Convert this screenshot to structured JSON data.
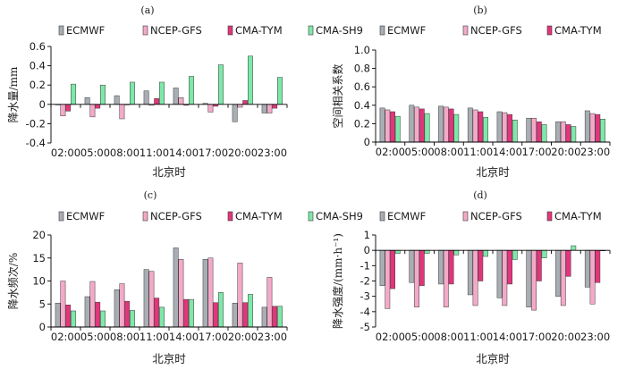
{
  "figure": {
    "legend_items": [
      {
        "name": "ECMWF",
        "color": "#a9aeb4"
      },
      {
        "name": "NCEP-GFS",
        "color": "#f4a9c8"
      },
      {
        "name": "CMA-TYM",
        "color": "#e2357b"
      },
      {
        "name": "CMA-SH9",
        "color": "#7ee8a8"
      }
    ],
    "bar_stroke": "#3a3a3a"
  },
  "chart_data": [
    {
      "panel": "(a)",
      "type": "bar",
      "categories": [
        "02:00",
        "05:00",
        "08:00",
        "11:00",
        "14:00",
        "17:00",
        "20:00",
        "23:00"
      ],
      "series": [
        {
          "name": "ECMWF",
          "values": [
            0.0,
            0.07,
            0.09,
            0.14,
            0.17,
            0.01,
            -0.18,
            -0.09
          ]
        },
        {
          "name": "NCEP-GFS",
          "values": [
            -0.12,
            -0.13,
            -0.15,
            -0.01,
            0.07,
            -0.08,
            -0.03,
            -0.09
          ]
        },
        {
          "name": "CMA-TYM",
          "values": [
            -0.07,
            -0.04,
            0.0,
            0.06,
            -0.01,
            -0.02,
            0.04,
            -0.04
          ]
        },
        {
          "name": "CMA-SH9",
          "values": [
            0.21,
            0.2,
            0.23,
            0.23,
            0.29,
            0.41,
            0.5,
            0.28
          ]
        }
      ],
      "xlabel": "北京时",
      "ylabel": "降水量/mm",
      "ylim": [
        -0.4,
        0.6
      ],
      "yticks": [
        -0.4,
        -0.2,
        0,
        0.2,
        0.4,
        0.6
      ],
      "ytick_labels": [
        "-0.4",
        "-0.2",
        "0",
        "0.2",
        "0.4",
        "0.6"
      ],
      "grid": false,
      "legend": "top"
    },
    {
      "panel": "(b)",
      "type": "bar",
      "categories": [
        "02:00",
        "05:00",
        "08:00",
        "11:00",
        "14:00",
        "17:00",
        "20:00",
        "23:00"
      ],
      "series": [
        {
          "name": "ECMWF",
          "values": [
            0.37,
            0.4,
            0.39,
            0.37,
            0.33,
            0.26,
            0.22,
            0.34
          ]
        },
        {
          "name": "NCEP-GFS",
          "values": [
            0.35,
            0.38,
            0.38,
            0.35,
            0.32,
            0.26,
            0.22,
            0.31
          ]
        },
        {
          "name": "CMA-TYM",
          "values": [
            0.33,
            0.36,
            0.36,
            0.33,
            0.3,
            0.22,
            0.19,
            0.3
          ]
        },
        {
          "name": "CMA-SH9",
          "values": [
            0.28,
            0.31,
            0.3,
            0.27,
            0.24,
            0.19,
            0.17,
            0.25
          ]
        }
      ],
      "xlabel": "北京时",
      "ylabel": "空间相关系数",
      "ylim": [
        0,
        1.0
      ],
      "yticks": [
        0,
        0.2,
        0.4,
        0.6,
        0.8,
        1.0
      ],
      "ytick_labels": [
        "0",
        "0.2",
        "0.4",
        "0.6",
        "0.8",
        "1.0"
      ],
      "grid": false,
      "legend": "top"
    },
    {
      "panel": "(c)",
      "type": "bar",
      "categories": [
        "02:00",
        "05:00",
        "08:00",
        "11:00",
        "14:00",
        "17:00",
        "20:00",
        "23:00"
      ],
      "series": [
        {
          "name": "ECMWF",
          "values": [
            5.2,
            6.6,
            8.1,
            12.5,
            17.2,
            14.7,
            5.2,
            4.3
          ]
        },
        {
          "name": "NCEP-GFS",
          "values": [
            10.0,
            9.9,
            9.4,
            12.1,
            14.7,
            15.0,
            13.9,
            10.8
          ]
        },
        {
          "name": "CMA-TYM",
          "values": [
            4.8,
            5.4,
            5.6,
            6.3,
            6.0,
            5.3,
            5.3,
            4.5
          ]
        },
        {
          "name": "CMA-SH9",
          "values": [
            3.5,
            3.5,
            3.6,
            4.3,
            6.0,
            7.5,
            7.1,
            4.5
          ]
        }
      ],
      "xlabel": "北京时",
      "ylabel": "降水频次/%",
      "ylim": [
        0,
        20
      ],
      "yticks": [
        0,
        5,
        10,
        15,
        20
      ],
      "ytick_labels": [
        "0",
        "5",
        "10",
        "15",
        "20"
      ],
      "grid": false,
      "legend": "top"
    },
    {
      "panel": "(d)",
      "type": "bar",
      "categories": [
        "02:00",
        "05:00",
        "08:00",
        "11:00",
        "14:00",
        "17:00",
        "20:00",
        "23:00"
      ],
      "series": [
        {
          "name": "ECMWF",
          "values": [
            -2.3,
            -2.1,
            -2.2,
            -2.9,
            -3.1,
            -3.7,
            -3.0,
            -2.4
          ]
        },
        {
          "name": "NCEP-GFS",
          "values": [
            -3.8,
            -3.7,
            -3.7,
            -3.6,
            -3.6,
            -3.9,
            -3.6,
            -3.5
          ]
        },
        {
          "name": "CMA-TYM",
          "values": [
            -2.5,
            -2.3,
            -2.2,
            -2.0,
            -2.2,
            -2.0,
            -1.7,
            -2.1
          ]
        },
        {
          "name": "CMA-SH9",
          "values": [
            -0.2,
            -0.2,
            -0.3,
            -0.4,
            -0.6,
            -0.5,
            0.3,
            0.0
          ]
        }
      ],
      "xlabel": "北京时",
      "ylabel": "降水强度/(mm·h⁻¹)",
      "ylim": [
        -5,
        1
      ],
      "yticks": [
        -5,
        -4,
        -3,
        -2,
        -1,
        0,
        1
      ],
      "ytick_labels": [
        "-5",
        "-4",
        "-3",
        "-2",
        "-1",
        "0",
        "1"
      ],
      "grid": false,
      "legend": "top"
    }
  ]
}
